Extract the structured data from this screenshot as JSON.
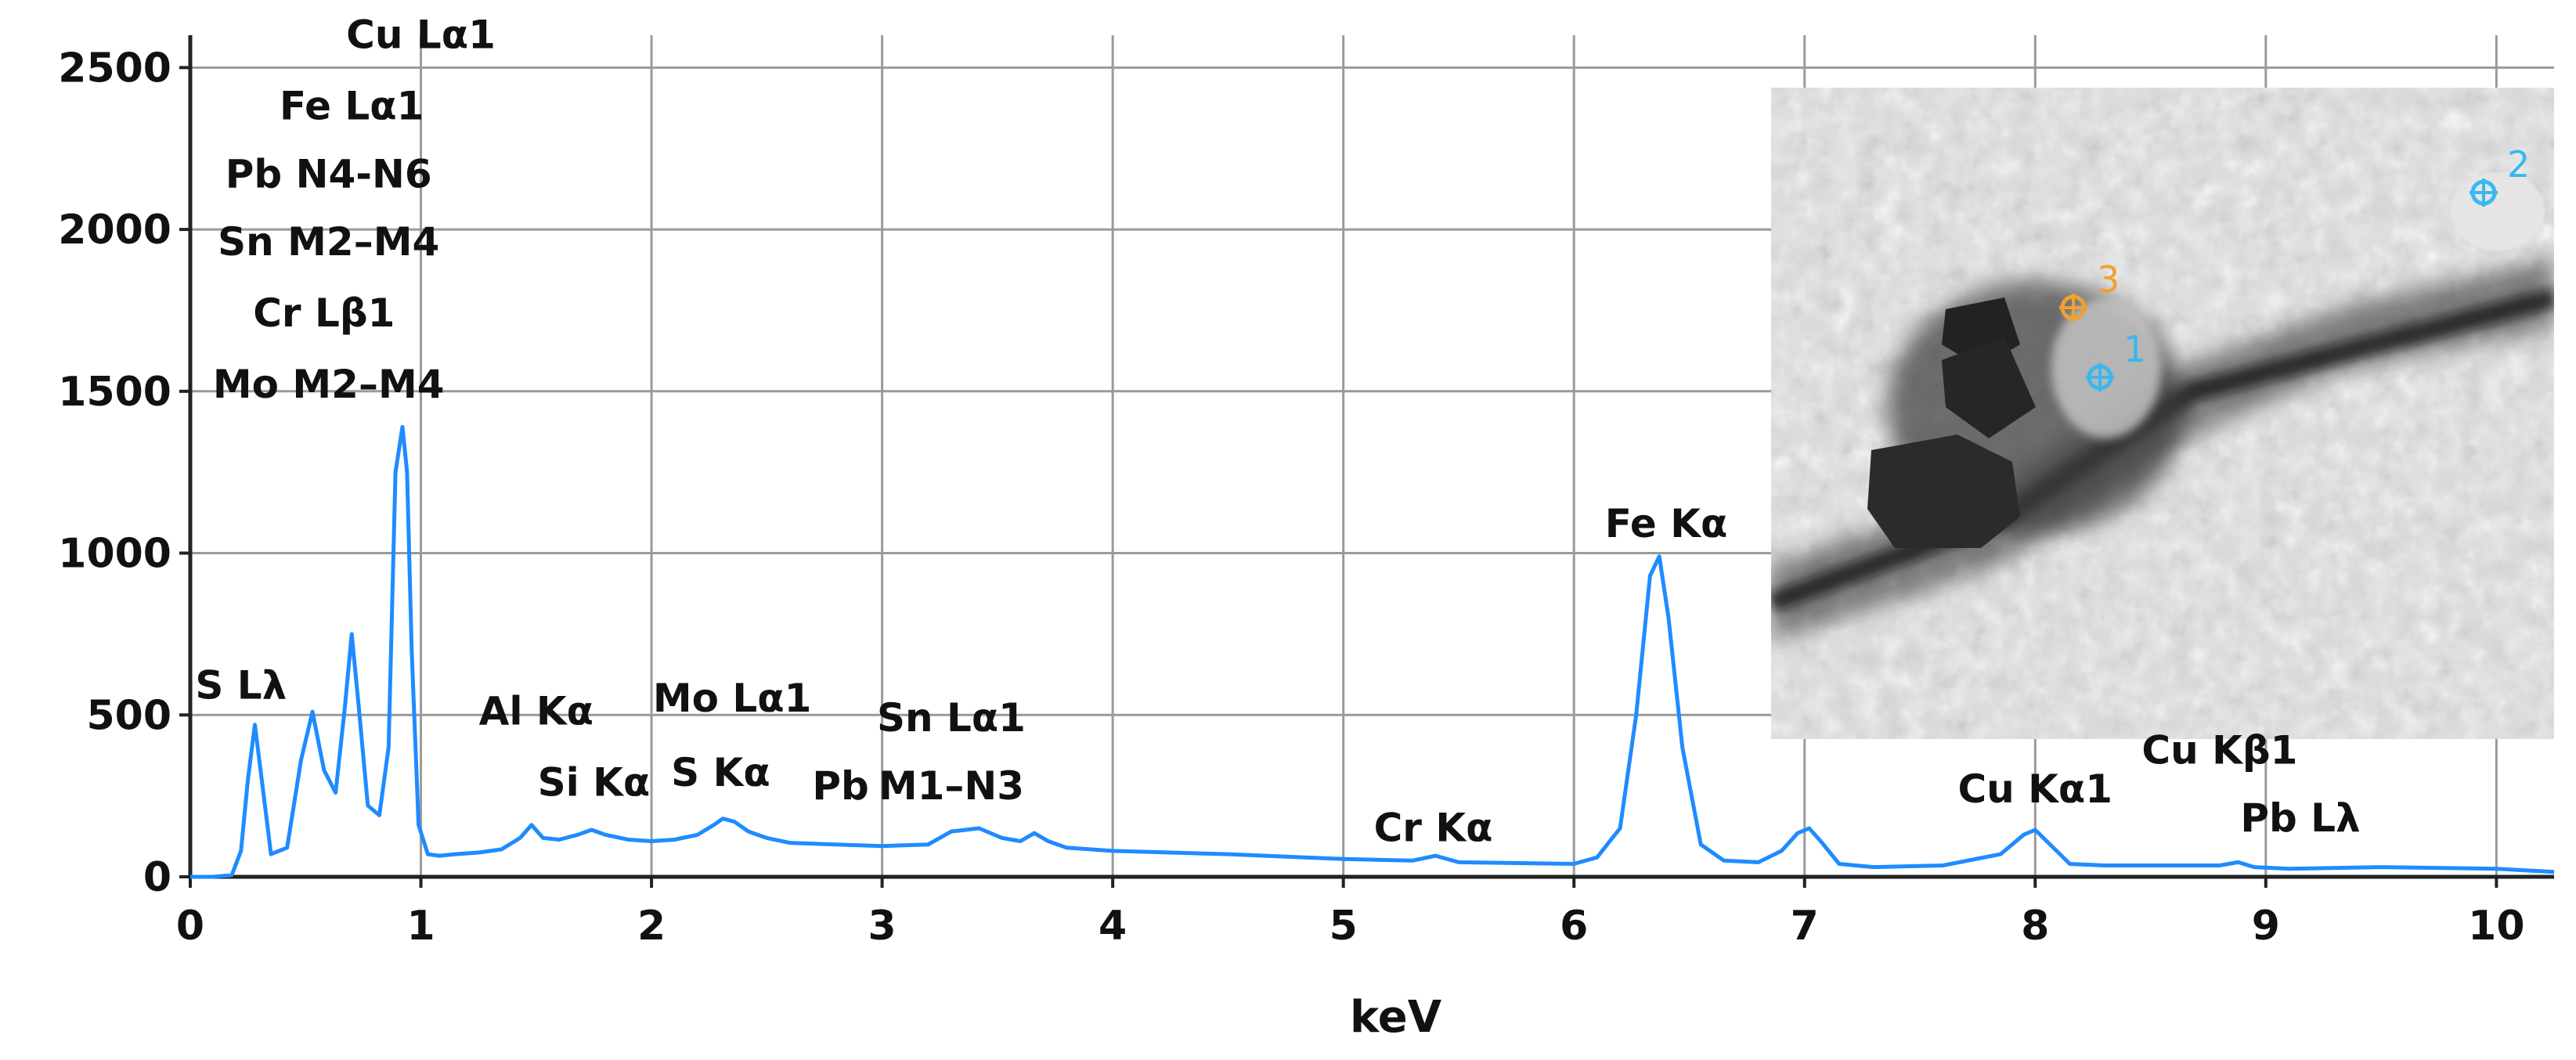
{
  "chart_data": {
    "type": "line",
    "title": "",
    "xlabel": "keV",
    "ylabel": "",
    "xlim": [
      0,
      10.25
    ],
    "ylim": [
      0,
      2600
    ],
    "grid": true,
    "x_ticks": [
      "0",
      "1",
      "2",
      "3",
      "4",
      "5",
      "6",
      "7",
      "8",
      "9",
      "10"
    ],
    "y_ticks": [
      "0",
      "500",
      "1000",
      "1500",
      "2000",
      "2500"
    ],
    "series": [
      {
        "color": "#1f8bff",
        "x": [
          0.0,
          0.1,
          0.18,
          0.22,
          0.25,
          0.28,
          0.31,
          0.35,
          0.42,
          0.48,
          0.53,
          0.58,
          0.63,
          0.67,
          0.7,
          0.73,
          0.77,
          0.82,
          0.86,
          0.89,
          0.92,
          0.94,
          0.96,
          0.99,
          1.03,
          1.08,
          1.15,
          1.25,
          1.35,
          1.43,
          1.48,
          1.53,
          1.6,
          1.68,
          1.74,
          1.8,
          1.9,
          2.0,
          2.1,
          2.2,
          2.27,
          2.31,
          2.36,
          2.42,
          2.5,
          2.6,
          2.8,
          3.0,
          3.2,
          3.3,
          3.42,
          3.52,
          3.6,
          3.66,
          3.72,
          3.8,
          4.0,
          4.5,
          5.0,
          5.3,
          5.4,
          5.5,
          6.0,
          6.1,
          6.2,
          6.27,
          6.33,
          6.37,
          6.41,
          6.47,
          6.55,
          6.65,
          6.8,
          6.9,
          6.97,
          7.02,
          7.07,
          7.15,
          7.3,
          7.6,
          7.85,
          7.95,
          8.0,
          8.05,
          8.15,
          8.3,
          8.8,
          8.88,
          8.95,
          9.1,
          9.5,
          10.0,
          10.25
        ],
        "values": [
          0,
          0,
          5,
          80,
          300,
          470,
          300,
          70,
          90,
          360,
          510,
          330,
          260,
          520,
          750,
          530,
          220,
          190,
          400,
          1250,
          1390,
          1250,
          700,
          160,
          70,
          65,
          70,
          75,
          85,
          120,
          160,
          120,
          115,
          130,
          145,
          130,
          115,
          110,
          115,
          130,
          160,
          180,
          170,
          140,
          120,
          105,
          100,
          95,
          100,
          140,
          150,
          120,
          110,
          135,
          110,
          90,
          80,
          70,
          55,
          50,
          65,
          45,
          40,
          60,
          150,
          500,
          930,
          990,
          800,
          400,
          100,
          50,
          45,
          80,
          135,
          150,
          110,
          40,
          30,
          35,
          70,
          130,
          145,
          110,
          40,
          35,
          35,
          45,
          30,
          25,
          30,
          25,
          15
        ]
      }
    ],
    "annotations": [
      {
        "label": "Cu Lα1",
        "x": 1.0,
        "y": 2560
      },
      {
        "label": "Fe Lα1",
        "x": 0.7,
        "y": 2340
      },
      {
        "label": "Pb N4-N6",
        "x": 0.6,
        "y": 2130
      },
      {
        "label": "Sn M2–M4",
        "x": 0.6,
        "y": 1920
      },
      {
        "label": "Cr Lβ1",
        "x": 0.58,
        "y": 1700
      },
      {
        "label": "Mo M2–M4",
        "x": 0.6,
        "y": 1480
      },
      {
        "label": "S Lλ",
        "x": 0.22,
        "y": 550
      },
      {
        "label": "Al Kα",
        "x": 1.5,
        "y": 470
      },
      {
        "label": "Si Kα",
        "x": 1.75,
        "y": 250
      },
      {
        "label": "Mo Lα1",
        "x": 2.35,
        "y": 510
      },
      {
        "label": "S Kα",
        "x": 2.3,
        "y": 280
      },
      {
        "label": "Pb",
        "x": 2.82,
        "y": 240
      },
      {
        "label": "Sn Lα1",
        "x": 3.3,
        "y": 450
      },
      {
        "label": "M1–N3",
        "x": 3.3,
        "y": 240
      },
      {
        "label": "Cr Kα",
        "x": 5.39,
        "y": 110
      },
      {
        "label": "Fe Kα",
        "x": 6.4,
        "y": 1050
      },
      {
        "label": "Cu Kα1",
        "x": 8.0,
        "y": 230
      },
      {
        "label": "Cu Kβ1",
        "x": 8.8,
        "y": 350
      },
      {
        "label": "Pb Lλ",
        "x": 9.15,
        "y": 140
      }
    ]
  },
  "inset": {
    "points": [
      {
        "label": "1",
        "color": "#3ab8ee"
      },
      {
        "label": "2",
        "color": "#3ab8ee"
      },
      {
        "label": "3",
        "color": "#f0a030"
      }
    ]
  }
}
